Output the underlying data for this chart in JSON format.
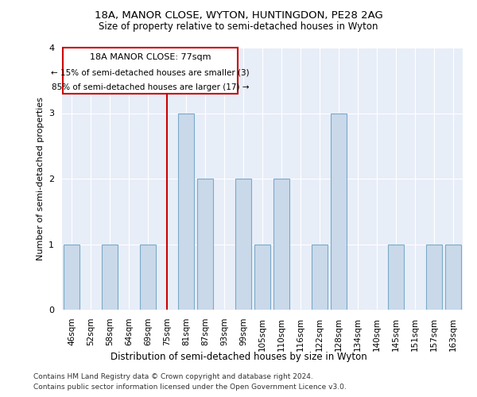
{
  "title_line1": "18A, MANOR CLOSE, WYTON, HUNTINGDON, PE28 2AG",
  "title_line2": "Size of property relative to semi-detached houses in Wyton",
  "xlabel": "Distribution of semi-detached houses by size in Wyton",
  "ylabel": "Number of semi-detached properties",
  "categories": [
    "46sqm",
    "52sqm",
    "58sqm",
    "64sqm",
    "69sqm",
    "75sqm",
    "81sqm",
    "87sqm",
    "93sqm",
    "99sqm",
    "105sqm",
    "110sqm",
    "116sqm",
    "122sqm",
    "128sqm",
    "134sqm",
    "140sqm",
    "145sqm",
    "151sqm",
    "157sqm",
    "163sqm"
  ],
  "values": [
    1,
    0,
    1,
    0,
    1,
    0,
    3,
    2,
    0,
    2,
    1,
    2,
    0,
    1,
    3,
    0,
    0,
    1,
    0,
    1,
    1
  ],
  "highlight_index": 5,
  "highlight_label": "18A MANOR CLOSE: 77sqm",
  "pct_smaller": "15% of semi-detached houses are smaller (3)",
  "pct_larger": "85% of semi-detached houses are larger (17)",
  "bar_color": "#c9d9ea",
  "bar_edge_color": "#7aaac8",
  "highlight_line_color": "#cc0000",
  "box_edge_color": "#cc0000",
  "background_color": "#e8eef8",
  "ylim": [
    0,
    4
  ],
  "yticks": [
    0,
    1,
    2,
    3,
    4
  ],
  "footer_line1": "Contains HM Land Registry data © Crown copyright and database right 2024.",
  "footer_line2": "Contains public sector information licensed under the Open Government Licence v3.0."
}
